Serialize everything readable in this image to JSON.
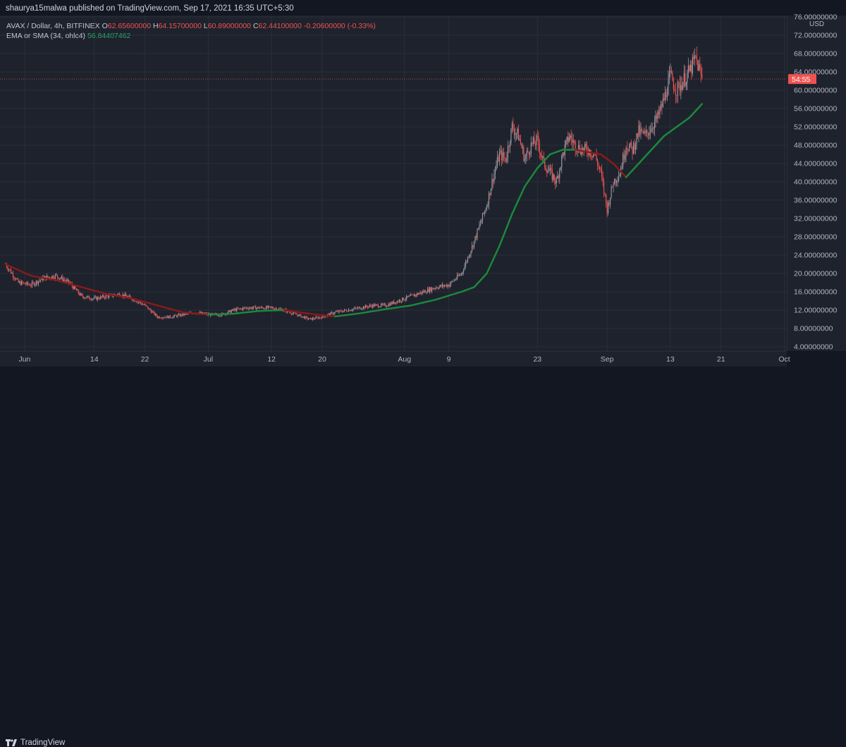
{
  "header": {
    "published_line": "shaurya15malwa published on TradingView.com, Sep 17, 2021 16:35 UTC+5:30"
  },
  "legend": {
    "symbol": "AVAX / Dollar, 4h, BITFINEX",
    "o_label": "O",
    "o_value": "62.65600000",
    "h_label": "H",
    "h_value": "64.15700000",
    "l_label": "L",
    "l_value": "60.89000000",
    "c_label": "C",
    "c_value": "62.44100000",
    "change": "-0.20600000 (-0.33%)",
    "indicator_label": "EMA or SMA (34, ohlc4)",
    "indicator_value": "56.84407462"
  },
  "price_axis": {
    "currency": "USD",
    "current_label": "54:55",
    "current_price": 62.441
  },
  "footer": {
    "brand": "TradingView"
  },
  "colors": {
    "background": "#1e222d",
    "up": "#9598a1",
    "down": "#ef5350",
    "ema_up": "#1b8a3a",
    "ema_down": "#8b1a1a",
    "price_line": "#ef5350"
  },
  "chart_data": {
    "type": "line",
    "title": "AVAX / Dollar, 4h, BITFINEX",
    "xlabel": "",
    "ylabel": "USD",
    "ylim": [
      4,
      76
    ],
    "y_ticks": [
      "76.00000000",
      "72.00000000",
      "68.00000000",
      "64.00000000",
      "60.00000000",
      "56.00000000",
      "52.00000000",
      "48.00000000",
      "44.00000000",
      "40.00000000",
      "36.00000000",
      "32.00000000",
      "28.00000000",
      "24.00000000",
      "20.00000000",
      "16.00000000",
      "12.00000000",
      "8.00000000",
      "4.00000000"
    ],
    "x_ticks": [
      "Jun",
      "14",
      "22",
      "Jul",
      "12",
      "20",
      "Aug",
      "9",
      "23",
      "Sep",
      "13",
      "21",
      "Oct"
    ],
    "x_tick_days": [
      3,
      14,
      22,
      32,
      42,
      50,
      63,
      70,
      84,
      95,
      105,
      113,
      123
    ],
    "grid": true,
    "series": [
      {
        "name": "AVAX / Dollar",
        "kind": "price",
        "x": [
          0,
          2,
          4,
          6,
          8,
          10,
          12,
          14,
          16,
          18,
          20,
          22,
          24,
          26,
          28,
          30,
          32,
          34,
          36,
          38,
          40,
          42,
          44,
          46,
          48,
          50,
          52,
          54,
          56,
          58,
          60,
          62,
          64,
          66,
          68,
          70,
          72,
          74,
          76,
          77,
          78,
          79,
          80,
          81,
          82,
          83,
          84,
          85,
          86,
          87,
          88,
          89,
          90,
          91,
          92,
          93,
          94,
          95,
          96,
          97,
          98,
          99,
          100,
          101,
          102,
          103,
          104,
          105,
          106,
          107,
          108,
          109,
          110
        ],
        "values": [
          22,
          18,
          17.5,
          19,
          19.5,
          18,
          15,
          14.5,
          15,
          15.5,
          14.5,
          13,
          10.5,
          10.5,
          11,
          11.5,
          11,
          11,
          12,
          12.5,
          12.5,
          12.5,
          12,
          11,
          10,
          10.5,
          11.5,
          12,
          12.5,
          13,
          13,
          14,
          15,
          16,
          17,
          17.5,
          20,
          27,
          35,
          41,
          46,
          45,
          52,
          50,
          45,
          48,
          49,
          44,
          42,
          40,
          46,
          50,
          48,
          47,
          47,
          46,
          42,
          34,
          40,
          42,
          48,
          47,
          51,
          50,
          52,
          54,
          58,
          63,
          60,
          62,
          64,
          67,
          62.4
        ]
      },
      {
        "name": "EMA or SMA (34, ohlc4)",
        "kind": "ema",
        "x": [
          0,
          4,
          8,
          12,
          16,
          20,
          24,
          28,
          32,
          36,
          40,
          44,
          48,
          52,
          56,
          60,
          64,
          68,
          72,
          74,
          76,
          78,
          80,
          82,
          84,
          86,
          88,
          90,
          92,
          94,
          96,
          98,
          100,
          102,
          104,
          106,
          108,
          110
        ],
        "values": [
          22,
          19.5,
          18.5,
          17,
          15.5,
          14.5,
          13,
          11.5,
          11,
          11.2,
          11.8,
          12,
          11.2,
          10.6,
          11.3,
          12.2,
          13,
          14.3,
          16,
          17,
          20,
          26,
          33,
          39,
          43,
          46,
          47,
          47,
          46.5,
          46,
          44,
          41,
          44,
          47,
          50,
          52,
          54,
          57
        ]
      }
    ]
  }
}
